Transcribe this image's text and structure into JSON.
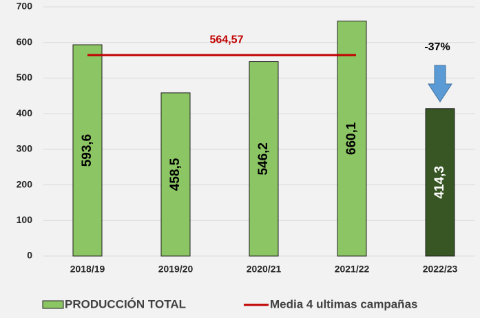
{
  "chart_data": {
    "type": "bar",
    "categories": [
      "2018/19",
      "2019/20",
      "2020/21",
      "2021/22",
      "2022/23"
    ],
    "series": [
      {
        "name": "PRODUCCIÓN TOTAL",
        "color": "#8cc564",
        "colors": [
          "#8cc564",
          "#8cc564",
          "#8cc564",
          "#8cc564",
          "#375623"
        ],
        "values": [
          593.6,
          458.5,
          546.2,
          660.1,
          414.3
        ],
        "value_labels": [
          "593,6",
          "458,5",
          "546,2",
          "660,1",
          "414,3"
        ]
      }
    ],
    "reference_line": {
      "name": "Media 4 ultimas campañas",
      "value": 564.57,
      "value_label": "564,57",
      "color": "#c00000"
    },
    "annotation": "-37%",
    "ylim": [
      0,
      700
    ],
    "yticks": [
      0,
      100,
      200,
      300,
      400,
      500,
      600,
      700
    ],
    "grid": true
  }
}
